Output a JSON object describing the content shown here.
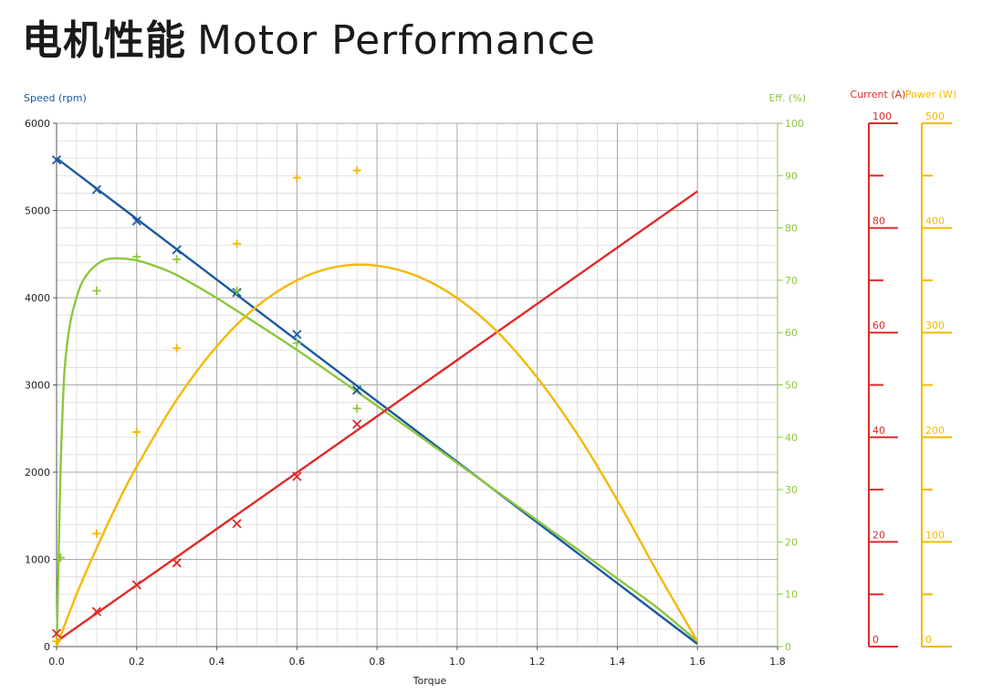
{
  "title": {
    "cn": "电机性能",
    "en": "Motor Performance"
  },
  "chart_data": {
    "type": "line",
    "xlabel": "Torque",
    "xlim": [
      0,
      1.8
    ],
    "x_ticks": [
      "0.0",
      "0.2",
      "0.4",
      "0.6",
      "0.8",
      "1.0",
      "1.2",
      "1.4",
      "1.6",
      "1.8"
    ],
    "grid": true,
    "axes": {
      "speed": {
        "label": "Speed (rpm)",
        "range": [
          0,
          6000
        ],
        "ticks": [
          "0",
          "1000",
          "2000",
          "3000",
          "4000",
          "5000",
          "6000"
        ],
        "color": "#1a5aa0"
      },
      "efficiency": {
        "label": "Eff. (%)",
        "range": [
          0,
          100
        ],
        "ticks": [
          "0",
          "10",
          "20",
          "30",
          "40",
          "50",
          "60",
          "70",
          "80",
          "90",
          "100"
        ],
        "color": "#8dc63f"
      },
      "current": {
        "label": "Current (A)",
        "range": [
          0,
          100
        ],
        "ticks": [
          "0",
          "20",
          "40",
          "60",
          "80",
          "100"
        ],
        "color": "#e02a2a"
      },
      "power": {
        "label": "Power (W)",
        "range": [
          0,
          500
        ],
        "ticks": [
          "0",
          "100",
          "200",
          "300",
          "400",
          "500"
        ],
        "color": "#f5b800"
      }
    },
    "series": [
      {
        "axis": "speed",
        "color": "#1a5aa0",
        "curve": [
          [
            0.0,
            5600
          ],
          [
            1.6,
            30
          ]
        ],
        "points": [
          [
            0.0,
            5580
          ],
          [
            0.1,
            5240
          ],
          [
            0.2,
            4880
          ],
          [
            0.3,
            4550
          ],
          [
            0.45,
            4060
          ],
          [
            0.6,
            3580
          ],
          [
            0.75,
            2940
          ]
        ],
        "marker": "x"
      },
      {
        "axis": "efficiency",
        "color": "#8dc63f",
        "curve": [
          [
            0.0,
            0
          ],
          [
            0.003,
            9
          ],
          [
            0.006,
            20
          ],
          [
            0.01,
            34
          ],
          [
            0.015,
            45
          ],
          [
            0.02,
            53
          ],
          [
            0.03,
            60
          ],
          [
            0.04,
            64
          ],
          [
            0.06,
            69
          ],
          [
            0.08,
            71.5
          ],
          [
            0.1,
            73
          ],
          [
            0.12,
            73.9
          ],
          [
            0.15,
            74.2
          ],
          [
            0.2,
            73.8
          ],
          [
            0.25,
            72.6
          ],
          [
            0.3,
            71
          ],
          [
            0.4,
            66.6
          ],
          [
            0.5,
            61.7
          ],
          [
            0.6,
            56.7
          ],
          [
            0.7,
            51.4
          ],
          [
            0.8,
            46
          ],
          [
            0.9,
            40.6
          ],
          [
            1.0,
            35.1
          ],
          [
            1.1,
            29.6
          ],
          [
            1.2,
            24.1
          ],
          [
            1.3,
            18.6
          ],
          [
            1.4,
            13
          ],
          [
            1.5,
            7.4
          ],
          [
            1.6,
            1
          ]
        ],
        "points": [
          [
            0.0,
            1
          ],
          [
            0.01,
            17
          ],
          [
            0.1,
            68
          ],
          [
            0.2,
            74.5
          ],
          [
            0.3,
            74
          ],
          [
            0.45,
            68
          ],
          [
            0.6,
            58
          ],
          [
            0.75,
            45.5
          ]
        ],
        "marker": "+"
      },
      {
        "axis": "current",
        "color": "#e02a2a",
        "curve": [
          [
            0.0,
            1
          ],
          [
            1.6,
            87
          ]
        ],
        "points": [
          [
            0.0,
            2.5
          ],
          [
            0.1,
            6.7
          ],
          [
            0.2,
            11.8
          ],
          [
            0.3,
            16
          ],
          [
            0.45,
            23.5
          ],
          [
            0.6,
            32.5
          ],
          [
            0.75,
            42.5
          ]
        ],
        "marker": "x"
      },
      {
        "axis": "power",
        "color": "#f5b800",
        "curve": [
          [
            0.0,
            0
          ],
          [
            0.05,
            50
          ],
          [
            0.1,
            94
          ],
          [
            0.15,
            135
          ],
          [
            0.2,
            172
          ],
          [
            0.3,
            236
          ],
          [
            0.4,
            287
          ],
          [
            0.5,
            325
          ],
          [
            0.6,
            350
          ],
          [
            0.7,
            363
          ],
          [
            0.8,
            364
          ],
          [
            0.9,
            354
          ],
          [
            1.0,
            333
          ],
          [
            1.1,
            301
          ],
          [
            1.2,
            257
          ],
          [
            1.3,
            203
          ],
          [
            1.4,
            140
          ],
          [
            1.5,
            71
          ],
          [
            1.6,
            5
          ]
        ],
        "points": [
          [
            0.0,
            5
          ],
          [
            0.1,
            108
          ],
          [
            0.2,
            205
          ],
          [
            0.3,
            285
          ],
          [
            0.45,
            385
          ],
          [
            0.6,
            448
          ],
          [
            0.75,
            455
          ]
        ],
        "marker": "+"
      }
    ]
  }
}
